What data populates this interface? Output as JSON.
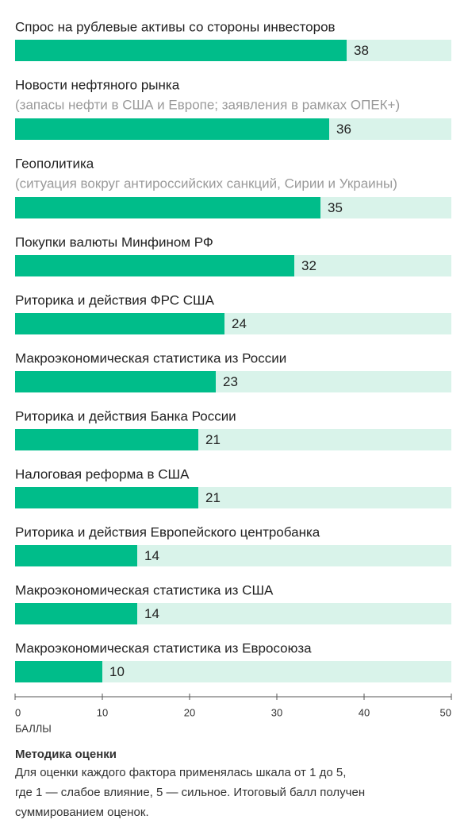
{
  "chart_data": {
    "type": "barh",
    "categories": [
      "Спрос на рублевые активы со стороны инвесторов",
      "Новости нефтяного рынка",
      "Геополитика",
      "Покупки валюты Минфином РФ",
      "Риторика и действия ФРС США",
      "Макроэкономическая статистика из России",
      "Риторика и действия Банка России",
      "Налоговая реформа в США",
      "Риторика и действия Европейского центробанка",
      "Макроэкономическая статистика из США",
      "Макроэкономическая статистика из Евросоюза"
    ],
    "subtitles": [
      null,
      "(запасы нефти в США и Европе; заявления в рамках ОПЕК+)",
      "(ситуация вокруг антироссийских санкций, Сирии и Украины)",
      null,
      null,
      null,
      null,
      null,
      null,
      null,
      null
    ],
    "values": [
      38,
      36,
      35,
      32,
      24,
      23,
      21,
      21,
      14,
      14,
      10
    ],
    "color": "#00bd8a",
    "track_color": "#d9f3ea",
    "xlim": [
      0,
      50
    ],
    "xticks": [
      0,
      10,
      20,
      30,
      40,
      50
    ],
    "x_label": "БАЛЛЫ",
    "note": {
      "title": "Методика оценки",
      "lines": [
        "Для оценки каждого фактора применялась шкала от 1 до 5,",
        "где 1 — слабое влияние, 5 — сильное. Итоговый балл получен",
        "суммированием оценок."
      ]
    }
  }
}
